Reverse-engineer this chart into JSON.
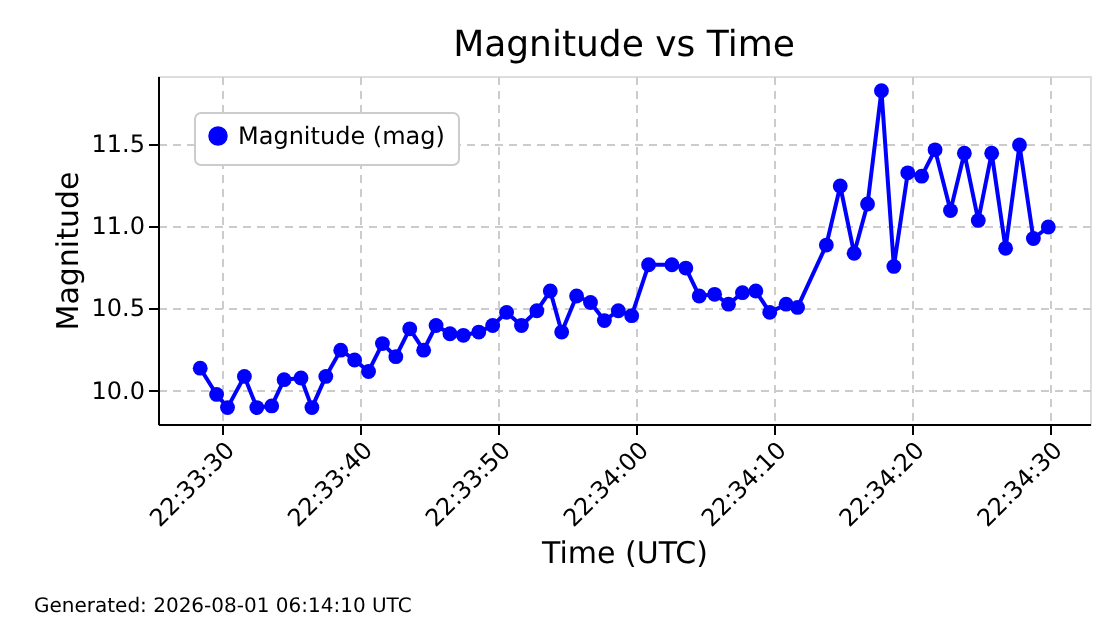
{
  "chart_data": {
    "type": "line",
    "title": "Magnitude vs Time",
    "xlabel": "Time (UTC)",
    "ylabel": "Magnitude",
    "x": [
      22.55789,
      22.55822,
      22.55844,
      22.55878,
      22.55903,
      22.55933,
      22.55958,
      22.55992,
      22.56014,
      22.56042,
      22.56072,
      22.561,
      22.56128,
      22.56156,
      22.56183,
      22.56211,
      22.56239,
      22.56264,
      22.56292,
      22.56319,
      22.5635,
      22.56378,
      22.56406,
      22.56436,
      22.56467,
      22.56494,
      22.56517,
      22.56547,
      22.56575,
      22.56603,
      22.56631,
      22.56658,
      22.56692,
      22.56739,
      22.56767,
      22.56794,
      22.56825,
      22.56853,
      22.56881,
      22.56908,
      22.56936,
      22.56969,
      22.56992,
      22.5705,
      22.57078,
      22.57106,
      22.57133,
      22.57161,
      22.57186,
      22.57214,
      22.57242,
      22.57269,
      22.573,
      22.57328,
      22.57356,
      22.57383,
      22.57411,
      22.57439,
      22.57467,
      22.57497
    ],
    "series": [
      {
        "name": "Magnitude (mag)",
        "color": "#0000ff",
        "values": [
          10.13,
          9.97,
          9.89,
          10.08,
          9.89,
          9.9,
          10.06,
          10.07,
          9.89,
          10.08,
          10.24,
          10.18,
          10.11,
          10.28,
          10.2,
          10.37,
          10.24,
          10.39,
          10.34,
          10.33,
          10.35,
          10.39,
          10.47,
          10.39,
          10.48,
          10.6,
          10.35,
          10.57,
          10.53,
          10.42,
          10.48,
          10.45,
          10.76,
          10.76,
          10.74,
          10.57,
          10.58,
          10.52,
          10.59,
          10.6,
          10.47,
          10.52,
          10.5,
          10.88,
          11.24,
          10.83,
          11.13,
          11.82,
          10.75,
          11.32,
          11.3,
          11.46,
          11.09,
          11.44,
          11.03,
          11.44,
          10.86,
          11.49,
          10.92,
          10.99
        ]
      }
    ],
    "xlim": [
      22.55704,
      22.57581
    ],
    "xticks": [
      {
        "value": 22.558333,
        "label": "22:33:30"
      },
      {
        "value": 22.561111,
        "label": "22:33:40"
      },
      {
        "value": 22.563889,
        "label": "22:33:50"
      },
      {
        "value": 22.566667,
        "label": "22:34:00"
      },
      {
        "value": 22.569444,
        "label": "22:34:10"
      },
      {
        "value": 22.572222,
        "label": "22:34:20"
      },
      {
        "value": 22.575,
        "label": "22:34:30"
      }
    ],
    "ylim": [
      9.79,
      11.91
    ],
    "yticks": [
      {
        "value": 10,
        "label": "10.0"
      },
      10.5,
      {
        "value": 11,
        "label": "11.0"
      },
      11.5
    ],
    "grid": true,
    "legend": "top left",
    "marker": "circle",
    "line_style": "solid",
    "annotations": [
      "Generated: 2026-08-01 06:14:10 UTC"
    ]
  }
}
